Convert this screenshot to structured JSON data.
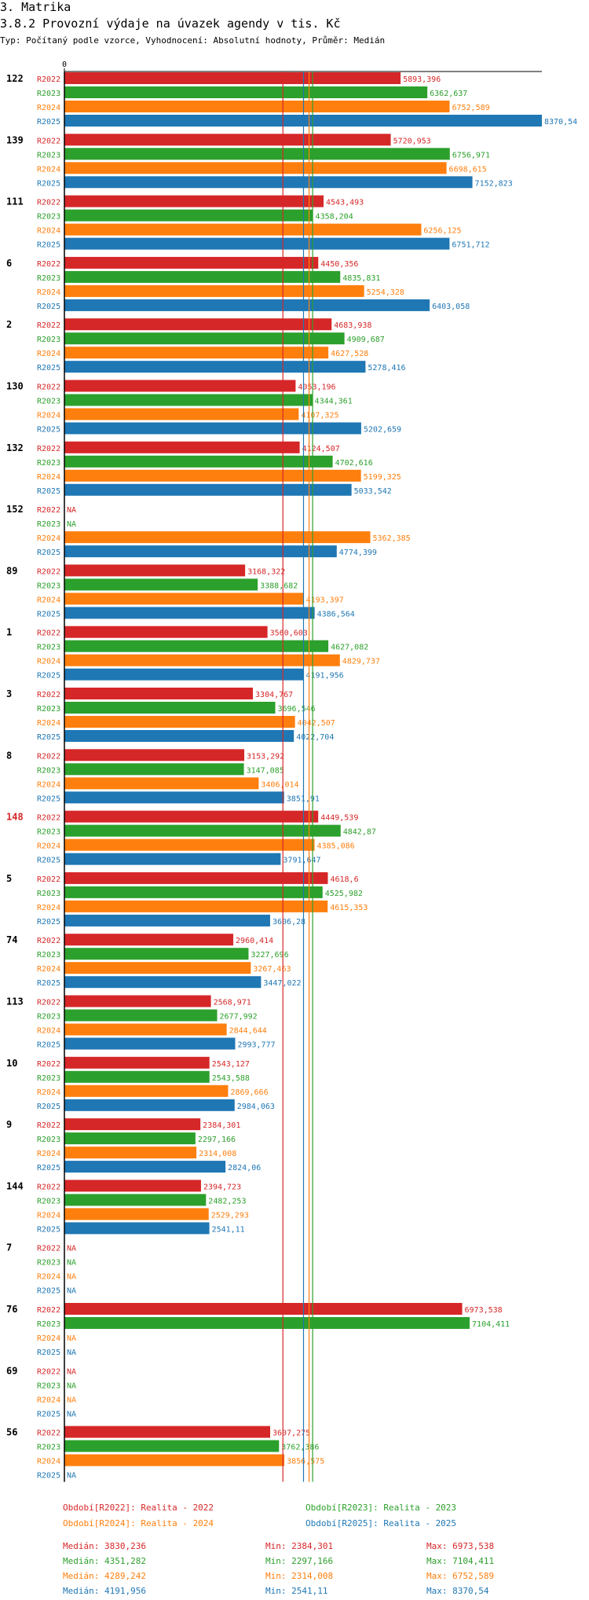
{
  "header": {
    "title": "3. Matrika",
    "subtitle": "3.8.2 Provozní výdaje na úvazek agendy v tis. Kč",
    "type_line": "Typ: Počítaný podle vzorce, Vyhodnocení: Absolutní hodnoty, Průměr: Medián"
  },
  "colors": {
    "R2022": "#d62728",
    "R2023": "#2ca02c",
    "R2024": "#ff7f0e",
    "R2025": "#1f77b4"
  },
  "chart_data": {
    "type": "bar",
    "orientation": "horizontal",
    "x_axis_tick": "0",
    "xlim": [
      0,
      8370.54
    ],
    "na_label": "NA",
    "series_names": [
      "R2022",
      "R2023",
      "R2024",
      "R2025"
    ],
    "groups": [
      {
        "label": "122",
        "highlight": false,
        "values": [
          5893.396,
          6362.637,
          6752.589,
          8370.54
        ],
        "labels": [
          "5893,396",
          "6362,637",
          "6752,589",
          "8370,54"
        ]
      },
      {
        "label": "139",
        "highlight": false,
        "values": [
          5720.953,
          6756.971,
          6698.615,
          7152.823
        ],
        "labels": [
          "5720,953",
          "6756,971",
          "6698,615",
          "7152,823"
        ]
      },
      {
        "label": "111",
        "highlight": false,
        "values": [
          4543.493,
          4358.204,
          6256.125,
          6751.712
        ],
        "labels": [
          "4543,493",
          "4358,204",
          "6256,125",
          "6751,712"
        ]
      },
      {
        "label": "6",
        "highlight": false,
        "values": [
          4450.356,
          4835.831,
          5254.328,
          6403.058
        ],
        "labels": [
          "4450,356",
          "4835,831",
          "5254,328",
          "6403,058"
        ]
      },
      {
        "label": "2",
        "highlight": false,
        "values": [
          4683.938,
          4909.687,
          4627.528,
          5278.416
        ],
        "labels": [
          "4683,938",
          "4909,687",
          "4627,528",
          "5278,416"
        ]
      },
      {
        "label": "130",
        "highlight": false,
        "values": [
          4053.196,
          4344.361,
          4107.325,
          5202.659
        ],
        "labels": [
          "4053,196",
          "4344,361",
          "4107,325",
          "5202,659"
        ]
      },
      {
        "label": "132",
        "highlight": false,
        "values": [
          4124.507,
          4702.616,
          5199.325,
          5033.542
        ],
        "labels": [
          "4124,507",
          "4702,616",
          "5199,325",
          "5033,542"
        ]
      },
      {
        "label": "152",
        "highlight": false,
        "values": [
          null,
          null,
          5362.385,
          4774.399
        ],
        "labels": [
          "NA",
          "NA",
          "5362,385",
          "4774,399"
        ]
      },
      {
        "label": "89",
        "highlight": false,
        "values": [
          3168.322,
          3388.682,
          4193.397,
          4386.564
        ],
        "labels": [
          "3168,322",
          "3388,682",
          "4193,397",
          "4386,564"
        ]
      },
      {
        "label": "1",
        "highlight": false,
        "values": [
          3560.603,
          4627.082,
          4829.737,
          4191.956
        ],
        "labels": [
          "3560,603",
          "4627,082",
          "4829,737",
          "4191,956"
        ]
      },
      {
        "label": "3",
        "highlight": false,
        "values": [
          3304.767,
          3696.546,
          4042.507,
          4022.704
        ],
        "labels": [
          "3304,767",
          "3696,546",
          "4042,507",
          "4022,704"
        ]
      },
      {
        "label": "8",
        "highlight": false,
        "values": [
          3153.292,
          3147.085,
          3406.014,
          3851.91
        ],
        "labels": [
          "3153,292",
          "3147,085",
          "3406,014",
          "3851,91"
        ]
      },
      {
        "label": "148",
        "highlight": true,
        "values": [
          4449.539,
          4842.87,
          4385.086,
          3791.647
        ],
        "labels": [
          "4449,539",
          "4842,87",
          "4385,086",
          "3791,647"
        ]
      },
      {
        "label": "5",
        "highlight": false,
        "values": [
          4618.6,
          4525.982,
          4615.353,
          3606.28
        ],
        "labels": [
          "4618,6",
          "4525,982",
          "4615,353",
          "3606,28"
        ]
      },
      {
        "label": "74",
        "highlight": false,
        "values": [
          2960.414,
          3227.696,
          3267.463,
          3447.022
        ],
        "labels": [
          "2960,414",
          "3227,696",
          "3267,463",
          "3447,022"
        ]
      },
      {
        "label": "113",
        "highlight": false,
        "values": [
          2568.971,
          2677.992,
          2844.644,
          2993.777
        ],
        "labels": [
          "2568,971",
          "2677,992",
          "2844,644",
          "2993,777"
        ]
      },
      {
        "label": "10",
        "highlight": false,
        "values": [
          2543.127,
          2543.588,
          2869.666,
          2984.063
        ],
        "labels": [
          "2543,127",
          "2543,588",
          "2869,666",
          "2984,063"
        ]
      },
      {
        "label": "9",
        "highlight": false,
        "values": [
          2384.301,
          2297.166,
          2314.008,
          2824.06
        ],
        "labels": [
          "2384,301",
          "2297,166",
          "2314,008",
          "2824,06"
        ]
      },
      {
        "label": "144",
        "highlight": false,
        "values": [
          2394.723,
          2482.253,
          2529.293,
          2541.11
        ],
        "labels": [
          "2394,723",
          "2482,253",
          "2529,293",
          "2541,11"
        ]
      },
      {
        "label": "7",
        "highlight": false,
        "values": [
          null,
          null,
          null,
          null
        ],
        "labels": [
          "NA",
          "NA",
          "NA",
          "NA"
        ]
      },
      {
        "label": "76",
        "highlight": false,
        "values": [
          6973.538,
          7104.411,
          null,
          null
        ],
        "labels": [
          "6973,538",
          "7104,411",
          "NA",
          "NA"
        ]
      },
      {
        "label": "69",
        "highlight": false,
        "values": [
          null,
          null,
          null,
          null
        ],
        "labels": [
          "NA",
          "NA",
          "NA",
          "NA"
        ]
      },
      {
        "label": "56",
        "highlight": false,
        "values": [
          3607.275,
          3762.386,
          3856.575,
          null
        ],
        "labels": [
          "3607,275",
          "3762,386",
          "3856,575",
          "NA"
        ]
      }
    ],
    "median_lines": [
      3830.236,
      4351.282,
      4289.242,
      4191.956
    ]
  },
  "footer": {
    "legend": [
      "Období[R2022]: Realita - 2022",
      "Období[R2023]: Realita - 2023",
      "Období[R2024]: Realita - 2024",
      "Období[R2025]: Realita - 2025"
    ],
    "stats": [
      {
        "median": "Medián: 3830,236",
        "min": "Min: 2384,301",
        "max": "Max: 6973,538"
      },
      {
        "median": "Medián: 4351,282",
        "min": "Min: 2297,166",
        "max": "Max: 7104,411"
      },
      {
        "median": "Medián: 4289,242",
        "min": "Min: 2314,008",
        "max": "Max: 6752,589"
      },
      {
        "median": "Medián: 4191,956",
        "min": "Min: 2541,11",
        "max": "Max: 8370,54"
      }
    ]
  }
}
